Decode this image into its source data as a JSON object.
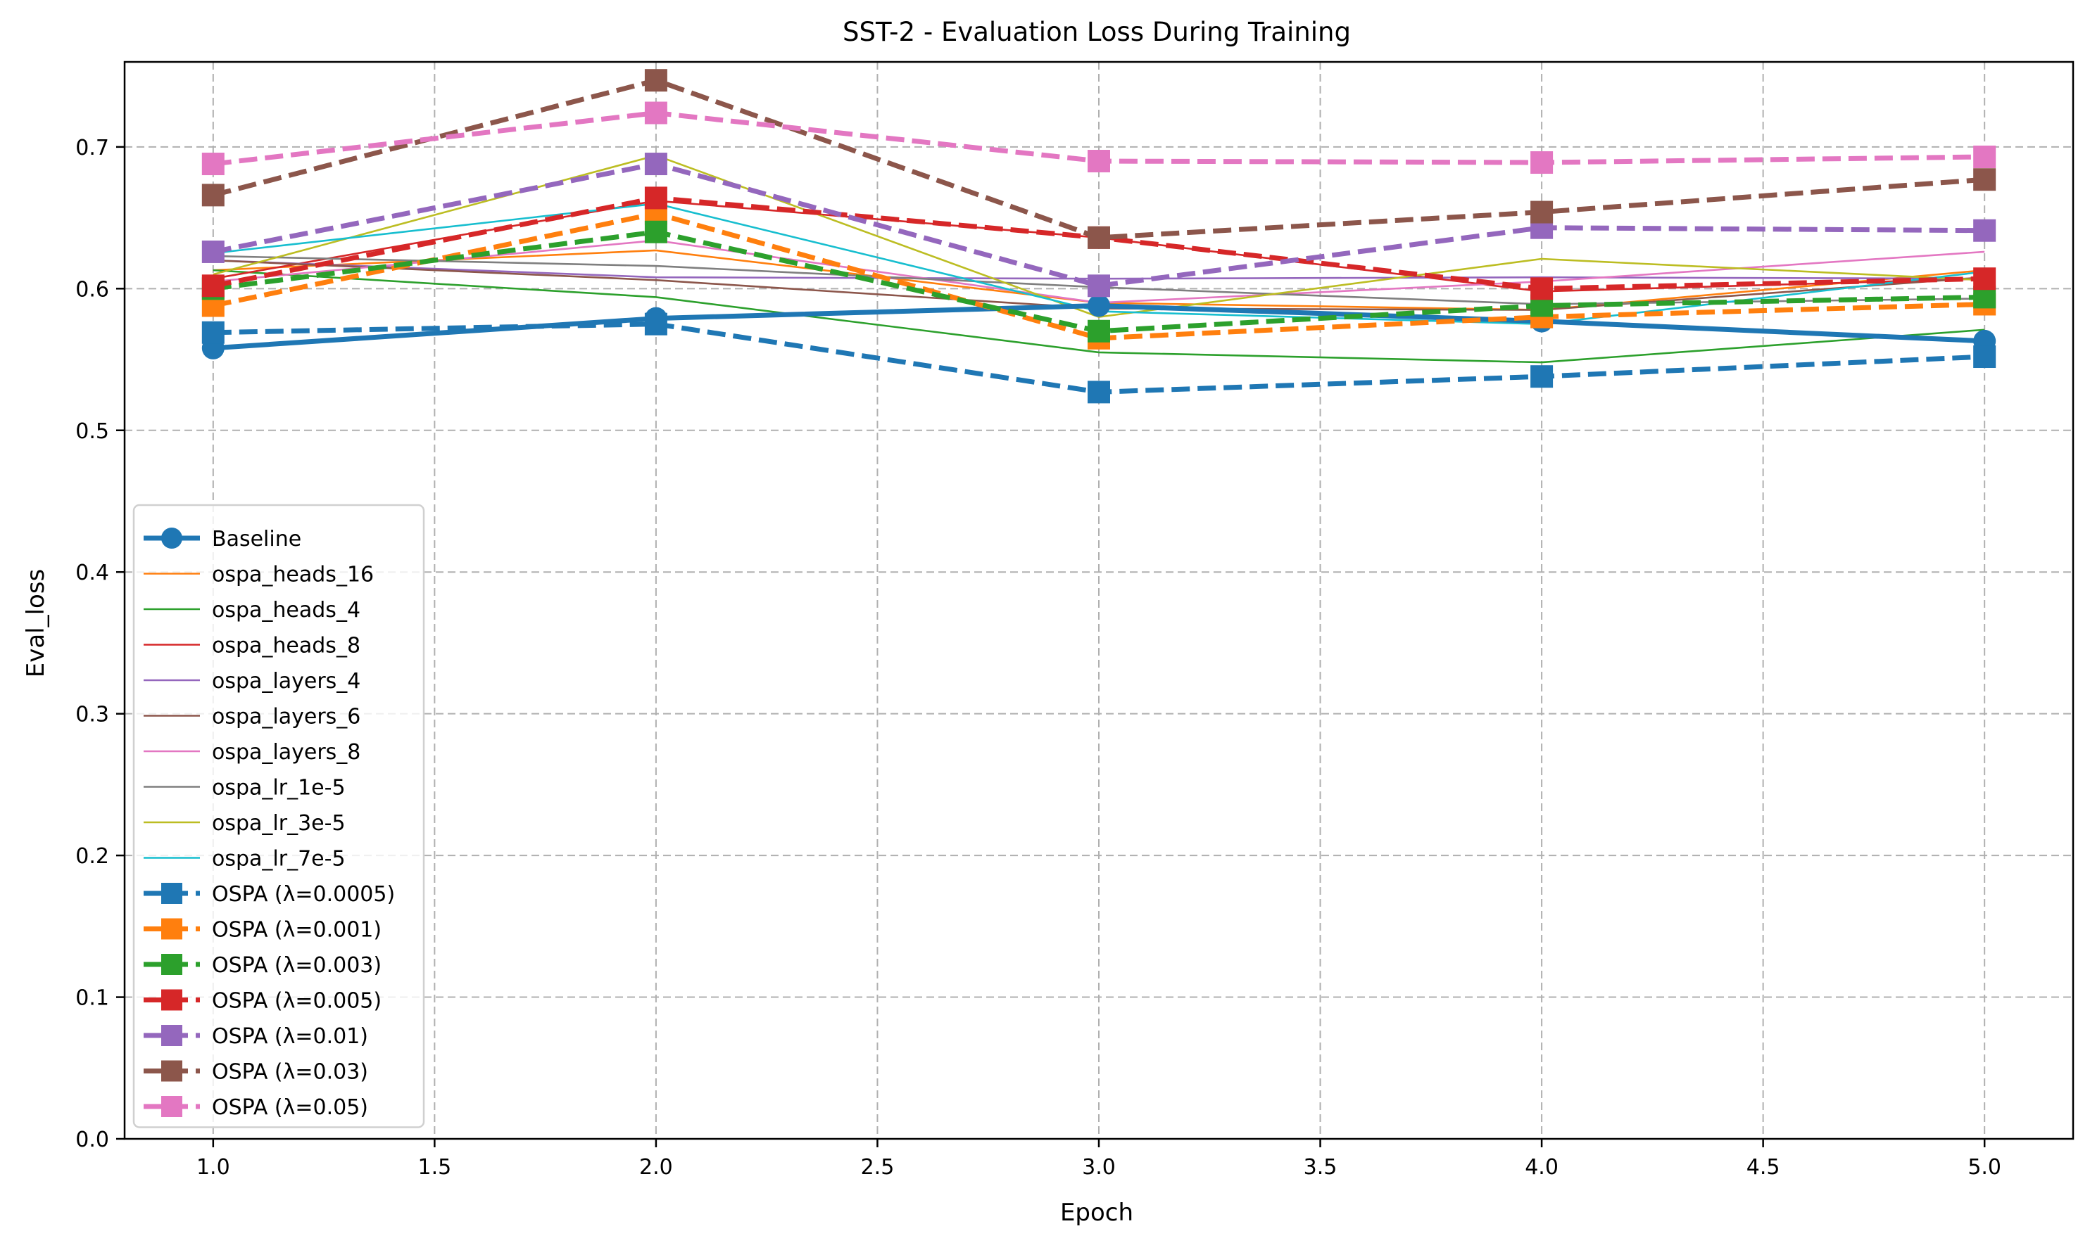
{
  "chart_data": {
    "type": "line",
    "title": "SST-2 - Evaluation Loss During Training",
    "xlabel": "Epoch",
    "ylabel": "Eval_loss",
    "xlim": [
      0.8,
      5.2
    ],
    "ylim": [
      0.0,
      0.76
    ],
    "xticks": [
      "1.0",
      "1.5",
      "2.0",
      "2.5",
      "3.0",
      "3.5",
      "4.0",
      "4.5",
      "5.0"
    ],
    "yticks": [
      "0.0",
      "0.1",
      "0.2",
      "0.3",
      "0.4",
      "0.5",
      "0.6",
      "0.7"
    ],
    "grid": true,
    "legend_position": "lower-left",
    "x": [
      1,
      2,
      3,
      4,
      5
    ],
    "series": [
      {
        "name": "Baseline",
        "color": "#1f77b4",
        "style": "solid",
        "marker": "circle",
        "weight": "thick",
        "values": [
          0.558,
          0.579,
          0.588,
          0.577,
          0.563
        ]
      },
      {
        "name": "ospa_heads_16",
        "color": "#ff7f0e",
        "style": "solid",
        "marker": "none",
        "weight": "thin",
        "values": [
          0.613,
          0.627,
          0.59,
          0.585,
          0.613
        ]
      },
      {
        "name": "ospa_heads_4",
        "color": "#2ca02c",
        "style": "solid",
        "marker": "none",
        "weight": "thin",
        "values": [
          0.613,
          0.594,
          0.555,
          0.548,
          0.571
        ]
      },
      {
        "name": "ospa_heads_8",
        "color": "#d62728",
        "style": "solid",
        "marker": "none",
        "weight": "thin",
        "values": [
          0.607,
          0.662,
          0.636,
          0.598,
          0.607
        ]
      },
      {
        "name": "ospa_layers_4",
        "color": "#9467bd",
        "style": "solid",
        "marker": "none",
        "weight": "thin",
        "values": [
          0.62,
          0.608,
          0.607,
          0.608,
          0.607
        ]
      },
      {
        "name": "ospa_layers_6",
        "color": "#8c564b",
        "style": "solid",
        "marker": "none",
        "weight": "thin",
        "values": [
          0.62,
          0.606,
          0.586,
          0.585,
          0.608
        ]
      },
      {
        "name": "ospa_layers_8",
        "color": "#e377c2",
        "style": "solid",
        "marker": "none",
        "weight": "thin",
        "values": [
          0.605,
          0.634,
          0.59,
          0.605,
          0.626
        ]
      },
      {
        "name": "ospa_lr_1e-5",
        "color": "#7f7f7f",
        "style": "solid",
        "marker": "none",
        "weight": "thin",
        "values": [
          0.623,
          0.616,
          0.601,
          0.589,
          0.593
        ]
      },
      {
        "name": "ospa_lr_3e-5",
        "color": "#bcbd22",
        "style": "solid",
        "marker": "none",
        "weight": "thin",
        "values": [
          0.61,
          0.694,
          0.58,
          0.621,
          0.606
        ]
      },
      {
        "name": "ospa_lr_7e-5",
        "color": "#17becf",
        "style": "solid",
        "marker": "none",
        "weight": "thin",
        "values": [
          0.625,
          0.66,
          0.584,
          0.575,
          0.612
        ]
      },
      {
        "name": "OSPA (λ=0.0005)",
        "color": "#1f77b4",
        "style": "dashed",
        "marker": "square",
        "weight": "thick",
        "values": [
          0.569,
          0.575,
          0.527,
          0.538,
          0.552
        ]
      },
      {
        "name": "OSPA (λ=0.001)",
        "color": "#ff7f0e",
        "style": "dashed",
        "marker": "square",
        "weight": "thick",
        "values": [
          0.588,
          0.653,
          0.565,
          0.58,
          0.589
        ]
      },
      {
        "name": "OSPA (λ=0.003)",
        "color": "#2ca02c",
        "style": "dashed",
        "marker": "square",
        "weight": "thick",
        "values": [
          0.6,
          0.64,
          0.57,
          0.588,
          0.594
        ]
      },
      {
        "name": "OSPA (λ=0.005)",
        "color": "#d62728",
        "style": "dashed",
        "marker": "square",
        "weight": "thick",
        "values": [
          0.602,
          0.664,
          0.636,
          0.6,
          0.607
        ]
      },
      {
        "name": "OSPA (λ=0.01)",
        "color": "#9467bd",
        "style": "dashed",
        "marker": "square",
        "weight": "thick",
        "values": [
          0.626,
          0.688,
          0.602,
          0.643,
          0.641
        ]
      },
      {
        "name": "OSPA (λ=0.03)",
        "color": "#8c564b",
        "style": "dashed",
        "marker": "square",
        "weight": "thick",
        "values": [
          0.666,
          0.747,
          0.636,
          0.654,
          0.677
        ]
      },
      {
        "name": "OSPA (λ=0.05)",
        "color": "#e377c2",
        "style": "dashed",
        "marker": "square",
        "weight": "thick",
        "values": [
          0.688,
          0.724,
          0.69,
          0.689,
          0.693
        ]
      }
    ]
  }
}
